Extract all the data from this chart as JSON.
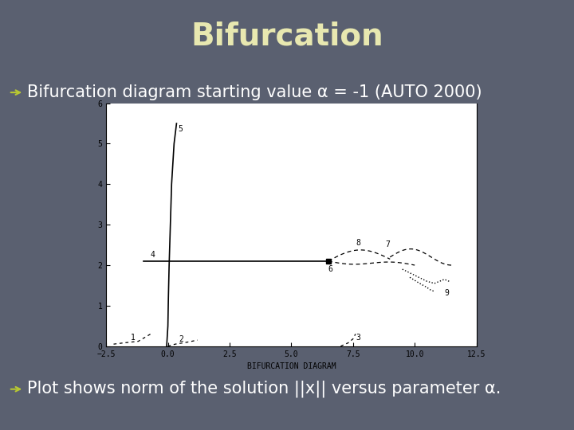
{
  "title": "Bifurcation",
  "title_color": "#e8e8b0",
  "title_fontsize": 28,
  "bg_color": "#5a6070",
  "bullet1": "Bifurcation diagram starting value α = -1 (AUTO 2000)",
  "bullet2": "Plot shows norm of the solution ||x|| versus parameter α.",
  "bullet_color": "#ffffff",
  "bullet_fontsize": 15,
  "arrow_color": "#b8c832",
  "plot_xlim": [
    -2.5,
    12.5
  ],
  "plot_ylim": [
    0,
    6
  ],
  "plot_xticks": [
    -2.5,
    0.0,
    2.5,
    5.0,
    7.5,
    10.0,
    12.5
  ],
  "plot_yticks": [
    0,
    1,
    2,
    3,
    4,
    5,
    6
  ],
  "plot_xlabel": "BIFURCATION DIAGRAM",
  "plot_bg": "#ffffff"
}
